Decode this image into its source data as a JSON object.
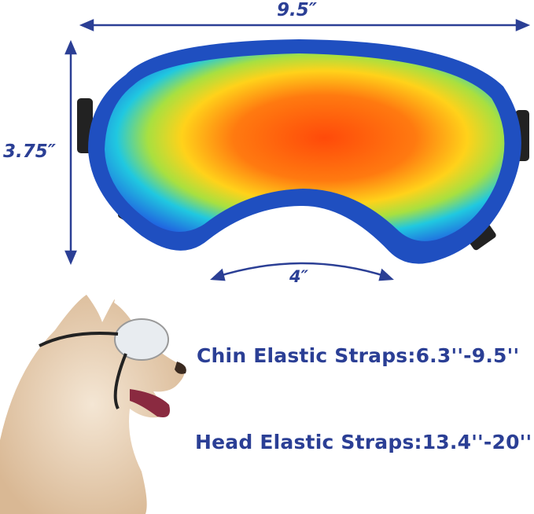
{
  "dimensions": {
    "width": "9.5″",
    "height": "3.75″",
    "nose_bridge": "4″"
  },
  "straps": {
    "chin": "Chin Elastic Straps:6.3''-9.5''",
    "head": "Head Elastic Straps:13.4''-20''"
  },
  "colors": {
    "text": "#2b3f95",
    "frame": "#1f4fc0",
    "lens_center": "#ff5a10"
  }
}
